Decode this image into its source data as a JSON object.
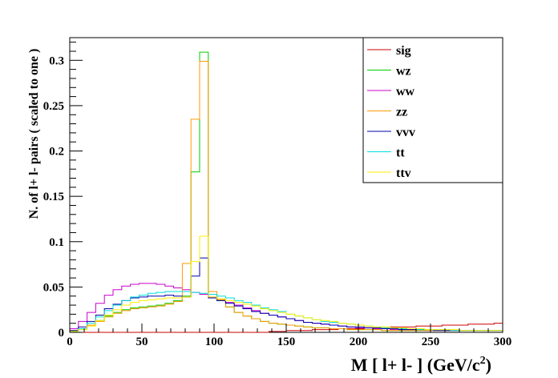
{
  "chart_data": {
    "type": "histogram",
    "title": "",
    "xlabel_main": "M [ l+ l- ] (GeV/c",
    "xlabel_sup": "2",
    "xlabel_tail": ")",
    "ylabel": "N. of l+ l- pairs  ( scaled to one )",
    "xlim": [
      0,
      300
    ],
    "ylim": [
      0,
      0.325
    ],
    "x_ticks": [
      0,
      50,
      100,
      150,
      200,
      250,
      300
    ],
    "y_ticks": [
      0,
      0.05,
      0.1,
      0.15,
      0.2,
      0.25,
      0.3
    ],
    "y_tick_labels": [
      "0",
      "0.05",
      "0.1",
      "0.15",
      "0.2",
      "0.25",
      "0.3"
    ],
    "bin_width": 6,
    "legend_position": "top-right",
    "series": [
      {
        "name": "sig",
        "color": "#cc0000",
        "values": [
          0.0,
          0.0,
          0.0,
          0.0,
          0.0,
          0.0,
          0.0,
          0.0,
          0.0,
          0.0,
          0.0,
          0.0,
          0.0,
          0.0,
          0.0,
          0.0,
          0.0,
          0.0,
          0.0,
          0.0,
          0.0,
          0.0,
          0.0,
          0.001,
          0.001,
          0.002,
          0.002,
          0.002,
          0.003,
          0.003,
          0.003,
          0.004,
          0.004,
          0.004,
          0.005,
          0.005,
          0.005,
          0.006,
          0.006,
          0.006,
          0.007,
          0.007,
          0.007,
          0.008,
          0.008,
          0.008,
          0.009,
          0.009,
          0.009,
          0.01
        ]
      },
      {
        "name": "wz",
        "color": "#00cc00",
        "values": [
          0.002,
          0.004,
          0.008,
          0.013,
          0.018,
          0.022,
          0.025,
          0.027,
          0.028,
          0.029,
          0.03,
          0.032,
          0.035,
          0.04,
          0.177,
          0.309,
          0.042,
          0.035,
          0.028,
          0.022,
          0.018,
          0.015,
          0.012,
          0.01,
          0.009,
          0.008,
          0.007,
          0.006,
          0.005,
          0.005,
          0.004,
          0.004,
          0.003,
          0.003,
          0.003,
          0.003,
          0.002,
          0.002,
          0.002,
          0.002,
          0.002,
          0.002,
          0.002,
          0.002,
          0.002,
          0.002,
          0.002,
          0.002,
          0.002,
          0.002
        ]
      },
      {
        "name": "ww",
        "color": "#cc00cc",
        "values": [
          0.004,
          0.012,
          0.022,
          0.032,
          0.041,
          0.047,
          0.051,
          0.053,
          0.054,
          0.054,
          0.053,
          0.051,
          0.049,
          0.047,
          0.044,
          0.042,
          0.039,
          0.036,
          0.033,
          0.03,
          0.027,
          0.024,
          0.021,
          0.019,
          0.017,
          0.015,
          0.013,
          0.011,
          0.01,
          0.009,
          0.008,
          0.007,
          0.006,
          0.005,
          0.005,
          0.004,
          0.004,
          0.003,
          0.003,
          0.003,
          0.003,
          0.002,
          0.002,
          0.002,
          0.002,
          0.002,
          0.002,
          0.002,
          0.002,
          0.002
        ]
      },
      {
        "name": "zz",
        "color": "#ff9900",
        "values": [
          0.002,
          0.004,
          0.008,
          0.012,
          0.017,
          0.021,
          0.024,
          0.026,
          0.027,
          0.028,
          0.029,
          0.031,
          0.034,
          0.076,
          0.235,
          0.299,
          0.045,
          0.036,
          0.028,
          0.022,
          0.018,
          0.015,
          0.012,
          0.01,
          0.009,
          0.008,
          0.007,
          0.006,
          0.005,
          0.005,
          0.004,
          0.004,
          0.003,
          0.003,
          0.003,
          0.003,
          0.002,
          0.002,
          0.002,
          0.002,
          0.002,
          0.002,
          0.002,
          0.002,
          0.002,
          0.002,
          0.002,
          0.002,
          0.002,
          0.002
        ]
      },
      {
        "name": "vvv",
        "color": "#0000aa",
        "values": [
          0.002,
          0.006,
          0.012,
          0.019,
          0.026,
          0.031,
          0.035,
          0.038,
          0.039,
          0.04,
          0.04,
          0.041,
          0.04,
          0.039,
          0.062,
          0.082,
          0.038,
          0.035,
          0.032,
          0.029,
          0.026,
          0.023,
          0.021,
          0.019,
          0.017,
          0.015,
          0.013,
          0.011,
          0.01,
          0.009,
          0.008,
          0.007,
          0.006,
          0.006,
          0.005,
          0.005,
          0.004,
          0.004,
          0.003,
          0.003,
          0.003,
          0.003,
          0.002,
          0.002,
          0.002,
          0.002,
          0.002,
          0.002,
          0.002,
          0.002
        ]
      },
      {
        "name": "tt",
        "color": "#00dddd",
        "values": [
          0.001,
          0.004,
          0.01,
          0.017,
          0.024,
          0.03,
          0.035,
          0.039,
          0.041,
          0.043,
          0.044,
          0.045,
          0.045,
          0.045,
          0.044,
          0.043,
          0.042,
          0.04,
          0.038,
          0.035,
          0.033,
          0.03,
          0.027,
          0.025,
          0.023,
          0.02,
          0.018,
          0.016,
          0.014,
          0.012,
          0.011,
          0.01,
          0.009,
          0.008,
          0.007,
          0.006,
          0.005,
          0.005,
          0.004,
          0.004,
          0.003,
          0.003,
          0.003,
          0.003,
          0.002,
          0.002,
          0.002,
          0.002,
          0.002,
          0.002
        ]
      },
      {
        "name": "ttv",
        "color": "#ffee00",
        "values": [
          0.001,
          0.003,
          0.007,
          0.013,
          0.019,
          0.025,
          0.03,
          0.033,
          0.035,
          0.036,
          0.037,
          0.038,
          0.038,
          0.039,
          0.078,
          0.106,
          0.039,
          0.037,
          0.035,
          0.033,
          0.031,
          0.029,
          0.026,
          0.024,
          0.022,
          0.02,
          0.018,
          0.016,
          0.014,
          0.013,
          0.012,
          0.01,
          0.009,
          0.008,
          0.007,
          0.006,
          0.006,
          0.005,
          0.005,
          0.004,
          0.004,
          0.003,
          0.003,
          0.003,
          0.003,
          0.002,
          0.002,
          0.002,
          0.002,
          0.002
        ]
      }
    ]
  }
}
